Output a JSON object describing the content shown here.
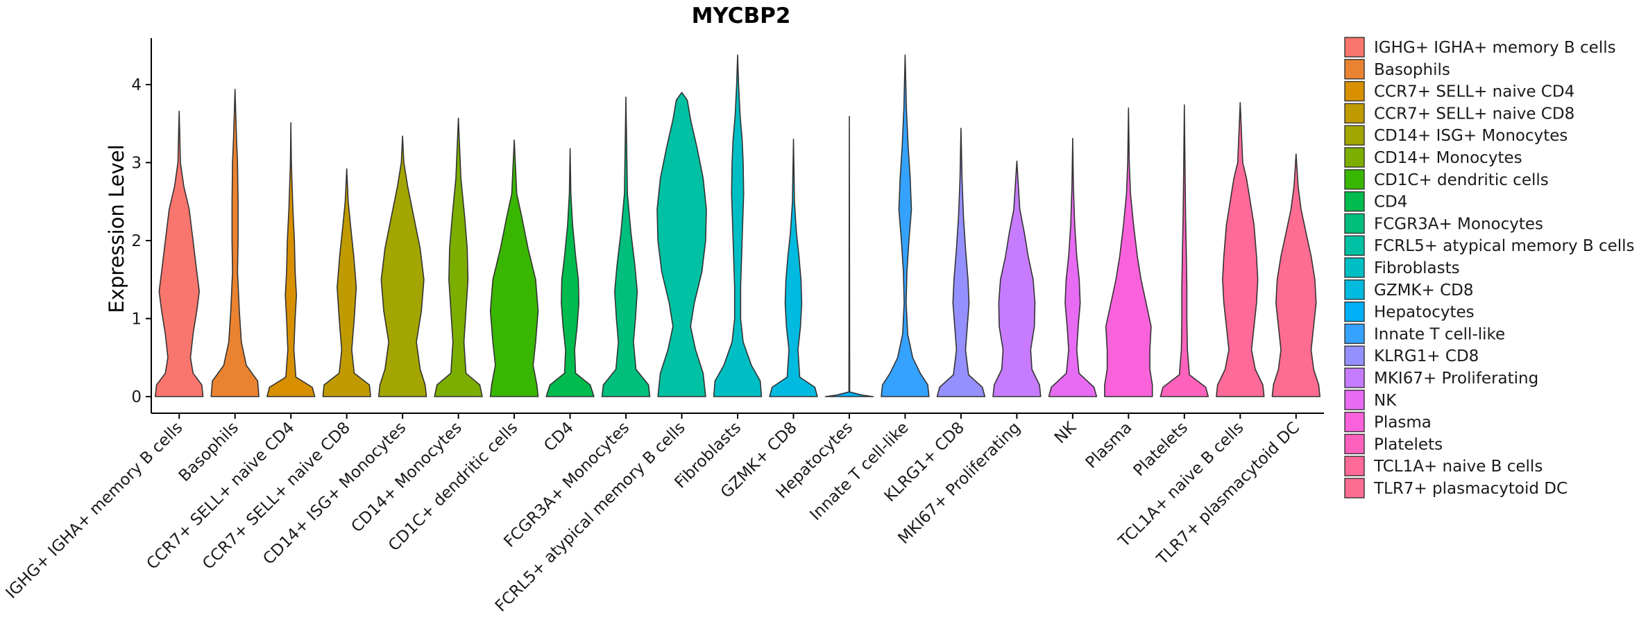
{
  "chart_data": {
    "type": "violin",
    "title": "MYCBP2",
    "xlabel": "",
    "ylabel": "Expression Level",
    "ylim": [
      -0.25,
      4.6
    ],
    "yticks": [
      0,
      1,
      2,
      3,
      4
    ],
    "legend_position": "right",
    "categories": [
      "IGHG+ IGHA+ memory B cells",
      "Basophils",
      "CCR7+ SELL+ naive CD4",
      "CCR7+ SELL+ naive CD8",
      "CD14+ ISG+ Monocytes",
      "CD14+ Monocytes",
      "CD1C+ dendritic cells",
      "CD4",
      "FCGR3A+ Monocytes",
      "FCRL5+ atypical memory B cells",
      "Fibroblasts",
      "GZMK+ CD8",
      "Hepatocytes",
      "Innate T cell-like",
      "KLRG1+ CD8",
      "MKI67+ Proliferating",
      "NK",
      "Plasma",
      "Platelets",
      "TCL1A+ naive B cells",
      "TLR7+ plasmacytoid DC"
    ],
    "legend_labels": [
      " IGHG+ IGHA+ memory B cells",
      "Basophils",
      "CCR7+ SELL+ naive CD4",
      "CCR7+ SELL+ naive CD8",
      "CD14+ ISG+ Monocytes",
      "CD14+ Monocytes",
      "CD1C+ dendritic cells",
      "CD4",
      "FCGR3A+ Monocytes",
      "FCRL5+ atypical memory B cells",
      "Fibroblasts",
      "GZMK+ CD8",
      "Hepatocytes",
      "Innate T cell-like",
      "KLRG1+ CD8",
      "MKI67+ Proliferating",
      "NK",
      "Plasma",
      "Platelets",
      "TCL1A+ naive B cells",
      "TLR7+ plasmacytoid DC"
    ],
    "colors": [
      "#F8766D",
      "#EA8331",
      "#D89000",
      "#C09B00",
      "#A3A500",
      "#7CAE00",
      "#39B600",
      "#00BB4E",
      "#00BF7D",
      "#00C1A3",
      "#00BFC4",
      "#00BAE0",
      "#00B0F6",
      "#35A2FF",
      "#9590FF",
      "#C77CFF",
      "#E76BF3",
      "#FA62DB",
      "#FF62BC",
      "#FF6A98",
      "#FF6C91"
    ],
    "y_max": [
      3.66,
      3.94,
      3.51,
      2.92,
      3.34,
      3.57,
      3.29,
      3.18,
      3.84,
      3.9,
      4.38,
      3.3,
      3.59,
      4.38,
      3.44,
      3.02,
      3.31,
      3.7,
      3.74,
      3.77,
      3.11
    ],
    "density_profiles": [
      [
        [
          0,
          0.95
        ],
        [
          0.15,
          0.9
        ],
        [
          0.3,
          0.55
        ],
        [
          0.5,
          0.45
        ],
        [
          0.8,
          0.55
        ],
        [
          1.1,
          0.7
        ],
        [
          1.35,
          0.8
        ],
        [
          1.6,
          0.7
        ],
        [
          2.0,
          0.55
        ],
        [
          2.4,
          0.4
        ],
        [
          2.7,
          0.18
        ],
        [
          3.0,
          0.05
        ],
        [
          3.66,
          0
        ]
      ],
      [
        [
          0,
          0.95
        ],
        [
          0.2,
          0.9
        ],
        [
          0.4,
          0.45
        ],
        [
          0.7,
          0.25
        ],
        [
          1.1,
          0.17
        ],
        [
          1.6,
          0.1
        ],
        [
          2.0,
          0.12
        ],
        [
          2.5,
          0.12
        ],
        [
          3.0,
          0.1
        ],
        [
          3.3,
          0.06
        ],
        [
          3.94,
          0
        ]
      ],
      [
        [
          0,
          0.95
        ],
        [
          0.12,
          0.85
        ],
        [
          0.25,
          0.2
        ],
        [
          0.6,
          0.12
        ],
        [
          1.0,
          0.17
        ],
        [
          1.3,
          0.22
        ],
        [
          1.6,
          0.17
        ],
        [
          2.0,
          0.14
        ],
        [
          2.4,
          0.08
        ],
        [
          3.0,
          0.02
        ],
        [
          3.51,
          0
        ]
      ],
      [
        [
          0,
          0.95
        ],
        [
          0.15,
          0.9
        ],
        [
          0.3,
          0.3
        ],
        [
          0.6,
          0.2
        ],
        [
          1.0,
          0.3
        ],
        [
          1.4,
          0.38
        ],
        [
          1.8,
          0.28
        ],
        [
          2.2,
          0.15
        ],
        [
          2.5,
          0.06
        ],
        [
          2.92,
          0
        ]
      ],
      [
        [
          0,
          0.95
        ],
        [
          0.15,
          0.9
        ],
        [
          0.35,
          0.7
        ],
        [
          0.7,
          0.55
        ],
        [
          1.1,
          0.75
        ],
        [
          1.5,
          0.85
        ],
        [
          1.9,
          0.7
        ],
        [
          2.3,
          0.45
        ],
        [
          2.7,
          0.2
        ],
        [
          3.0,
          0.05
        ],
        [
          3.34,
          0
        ]
      ],
      [
        [
          0,
          0.95
        ],
        [
          0.15,
          0.85
        ],
        [
          0.3,
          0.3
        ],
        [
          0.7,
          0.22
        ],
        [
          1.1,
          0.3
        ],
        [
          1.5,
          0.38
        ],
        [
          1.9,
          0.35
        ],
        [
          2.3,
          0.25
        ],
        [
          2.8,
          0.1
        ],
        [
          3.57,
          0
        ]
      ],
      [
        [
          0,
          0.95
        ],
        [
          0.15,
          0.9
        ],
        [
          0.4,
          0.75
        ],
        [
          0.7,
          0.85
        ],
        [
          1.1,
          0.95
        ],
        [
          1.5,
          0.85
        ],
        [
          1.9,
          0.55
        ],
        [
          2.3,
          0.3
        ],
        [
          2.6,
          0.1
        ],
        [
          3.29,
          0
        ]
      ],
      [
        [
          0,
          0.95
        ],
        [
          0.15,
          0.8
        ],
        [
          0.3,
          0.22
        ],
        [
          0.6,
          0.18
        ],
        [
          0.9,
          0.28
        ],
        [
          1.2,
          0.35
        ],
        [
          1.5,
          0.33
        ],
        [
          1.8,
          0.22
        ],
        [
          2.2,
          0.1
        ],
        [
          2.6,
          0.03
        ],
        [
          3.18,
          0
        ]
      ],
      [
        [
          0,
          0.95
        ],
        [
          0.15,
          0.9
        ],
        [
          0.35,
          0.4
        ],
        [
          0.7,
          0.3
        ],
        [
          1.0,
          0.38
        ],
        [
          1.35,
          0.45
        ],
        [
          1.7,
          0.35
        ],
        [
          2.1,
          0.2
        ],
        [
          2.6,
          0.06
        ],
        [
          3.84,
          0
        ]
      ],
      [
        [
          0,
          0.95
        ],
        [
          0.3,
          0.85
        ],
        [
          0.6,
          0.55
        ],
        [
          0.9,
          0.35
        ],
        [
          1.2,
          0.5
        ],
        [
          1.6,
          0.8
        ],
        [
          2.0,
          0.95
        ],
        [
          2.4,
          0.98
        ],
        [
          2.8,
          0.85
        ],
        [
          3.2,
          0.6
        ],
        [
          3.55,
          0.35
        ],
        [
          3.8,
          0.22
        ],
        [
          3.9,
          0
        ]
      ],
      [
        [
          0,
          0.95
        ],
        [
          0.2,
          0.9
        ],
        [
          0.4,
          0.55
        ],
        [
          0.7,
          0.22
        ],
        [
          1.0,
          0.12
        ],
        [
          1.4,
          0.12
        ],
        [
          1.8,
          0.16
        ],
        [
          2.2,
          0.2
        ],
        [
          2.6,
          0.24
        ],
        [
          3.0,
          0.22
        ],
        [
          3.3,
          0.18
        ],
        [
          3.6,
          0.1
        ],
        [
          4.0,
          0.04
        ],
        [
          4.38,
          0
        ]
      ],
      [
        [
          0,
          0.95
        ],
        [
          0.12,
          0.85
        ],
        [
          0.25,
          0.25
        ],
        [
          0.6,
          0.18
        ],
        [
          0.9,
          0.28
        ],
        [
          1.2,
          0.33
        ],
        [
          1.5,
          0.3
        ],
        [
          1.8,
          0.22
        ],
        [
          2.1,
          0.12
        ],
        [
          2.5,
          0.04
        ],
        [
          3.3,
          0
        ]
      ],
      [
        [
          0,
          0.95
        ],
        [
          0.02,
          0.5
        ],
        [
          0.06,
          0.015
        ],
        [
          3.59,
          0
        ]
      ],
      [
        [
          0,
          0.95
        ],
        [
          0.15,
          0.9
        ],
        [
          0.3,
          0.6
        ],
        [
          0.5,
          0.3
        ],
        [
          0.8,
          0.1
        ],
        [
          1.2,
          0.04
        ],
        [
          1.6,
          0.07
        ],
        [
          2.0,
          0.15
        ],
        [
          2.4,
          0.25
        ],
        [
          2.8,
          0.2
        ],
        [
          3.2,
          0.12
        ],
        [
          3.7,
          0.05
        ],
        [
          4.38,
          0
        ]
      ],
      [
        [
          0,
          0.95
        ],
        [
          0.12,
          0.85
        ],
        [
          0.28,
          0.3
        ],
        [
          0.6,
          0.18
        ],
        [
          0.9,
          0.25
        ],
        [
          1.2,
          0.32
        ],
        [
          1.5,
          0.28
        ],
        [
          1.9,
          0.18
        ],
        [
          2.3,
          0.1
        ],
        [
          2.8,
          0.04
        ],
        [
          3.44,
          0
        ]
      ],
      [
        [
          0,
          0.95
        ],
        [
          0.15,
          0.9
        ],
        [
          0.35,
          0.6
        ],
        [
          0.6,
          0.55
        ],
        [
          0.9,
          0.7
        ],
        [
          1.2,
          0.72
        ],
        [
          1.5,
          0.65
        ],
        [
          1.8,
          0.45
        ],
        [
          2.1,
          0.3
        ],
        [
          2.4,
          0.12
        ],
        [
          3.02,
          0
        ]
      ],
      [
        [
          0,
          0.95
        ],
        [
          0.12,
          0.85
        ],
        [
          0.3,
          0.25
        ],
        [
          0.6,
          0.16
        ],
        [
          0.9,
          0.22
        ],
        [
          1.2,
          0.3
        ],
        [
          1.5,
          0.26
        ],
        [
          1.8,
          0.16
        ],
        [
          2.2,
          0.08
        ],
        [
          2.7,
          0.03
        ],
        [
          3.31,
          0
        ]
      ],
      [
        [
          0,
          0.95
        ],
        [
          0.15,
          0.95
        ],
        [
          0.35,
          0.85
        ],
        [
          0.6,
          0.85
        ],
        [
          0.9,
          0.9
        ],
        [
          1.2,
          0.7
        ],
        [
          1.5,
          0.5
        ],
        [
          1.8,
          0.35
        ],
        [
          2.2,
          0.2
        ],
        [
          2.6,
          0.08
        ],
        [
          3.0,
          0.03
        ],
        [
          3.7,
          0
        ]
      ],
      [
        [
          0,
          0.95
        ],
        [
          0.12,
          0.85
        ],
        [
          0.28,
          0.2
        ],
        [
          0.6,
          0.12
        ],
        [
          1.0,
          0.1
        ],
        [
          1.4,
          0.1
        ],
        [
          1.8,
          0.08
        ],
        [
          2.3,
          0.05
        ],
        [
          2.8,
          0.03
        ],
        [
          3.74,
          0
        ]
      ],
      [
        [
          0,
          0.95
        ],
        [
          0.15,
          0.9
        ],
        [
          0.35,
          0.6
        ],
        [
          0.6,
          0.45
        ],
        [
          0.9,
          0.55
        ],
        [
          1.2,
          0.65
        ],
        [
          1.5,
          0.7
        ],
        [
          1.8,
          0.65
        ],
        [
          2.2,
          0.55
        ],
        [
          2.5,
          0.4
        ],
        [
          2.8,
          0.25
        ],
        [
          3.0,
          0.1
        ],
        [
          3.77,
          0
        ]
      ],
      [
        [
          0,
          0.95
        ],
        [
          0.15,
          0.9
        ],
        [
          0.35,
          0.7
        ],
        [
          0.6,
          0.6
        ],
        [
          0.9,
          0.7
        ],
        [
          1.2,
          0.8
        ],
        [
          1.5,
          0.75
        ],
        [
          1.8,
          0.6
        ],
        [
          2.1,
          0.4
        ],
        [
          2.4,
          0.2
        ],
        [
          2.7,
          0.08
        ],
        [
          3.11,
          0
        ]
      ]
    ]
  }
}
